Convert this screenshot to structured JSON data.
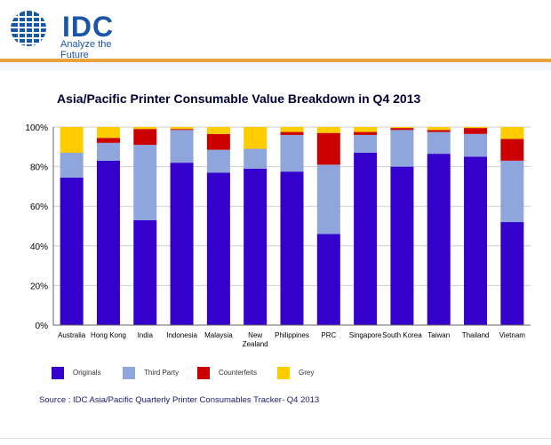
{
  "header": {
    "logo_text": "IDC",
    "tagline": "Analyze the Future"
  },
  "chart_data": {
    "type": "bar",
    "stacked": true,
    "title": "Asia/Pacific Printer Consumable Value Breakdown in Q4 2013",
    "categories": [
      "Australia",
      "Hong Kong",
      "India",
      "Indonesia",
      "Malaysia",
      "New Zealand",
      "Philippines",
      "PRC",
      "Singapore",
      "South Korea",
      "Taiwan",
      "Thailand",
      "Vietnam"
    ],
    "series": [
      {
        "name": "Originals",
        "color": "#3300cc",
        "values": [
          74.5,
          83,
          53,
          82,
          77,
          79,
          77.5,
          46,
          87,
          80,
          86.5,
          85,
          52
        ]
      },
      {
        "name": "Third Party",
        "color": "#8ea6db",
        "values": [
          12.5,
          9,
          38,
          16.5,
          11.5,
          10,
          18.5,
          35,
          9,
          18.5,
          11,
          11.5,
          31
        ]
      },
      {
        "name": "Counterfeits",
        "color": "#cc0000",
        "values": [
          0,
          2.5,
          8,
          0.5,
          8,
          0,
          1.5,
          16,
          1.5,
          1,
          1,
          3,
          11
        ]
      },
      {
        "name": "Grey",
        "color": "#ffcc00",
        "values": [
          13,
          5.5,
          1,
          1,
          3.5,
          11,
          2.5,
          3,
          2.5,
          0.5,
          1.5,
          0.5,
          6
        ]
      }
    ],
    "ylim": [
      0,
      100
    ],
    "yticks": [
      "0%",
      "20%",
      "40%",
      "60%",
      "80%",
      "100%"
    ],
    "grid": true,
    "legend_placement": "bottom"
  },
  "source": "Source : IDC Asia/Pacific Quarterly Printer Consumables Tracker- Q4 2013"
}
